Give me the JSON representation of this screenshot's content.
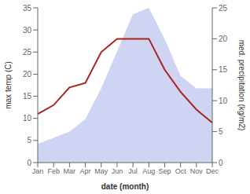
{
  "chart_data": {
    "type": "line",
    "categories": [
      "Jan",
      "Feb",
      "Mar",
      "Apr",
      "May",
      "Jun",
      "Jul",
      "Aug",
      "Sep",
      "Oct",
      "Nov",
      "Dec"
    ],
    "xlabel": "date (month)",
    "ylabel": "max temp (C)",
    "y2label": "med. precipitation (kg/m2)",
    "ylim": [
      0,
      35
    ],
    "yticks": [
      0,
      5,
      10,
      15,
      20,
      25,
      30,
      35
    ],
    "y2lim": [
      0,
      25
    ],
    "y2ticks": [
      0,
      5,
      10,
      15,
      20,
      25
    ],
    "series": [
      {
        "type": "area",
        "axis": "y2",
        "color": "#c5ccee",
        "values": [
          3,
          4,
          5,
          7,
          12,
          18,
          24,
          25,
          20,
          14,
          12,
          12
        ]
      },
      {
        "type": "line",
        "color": "#aa2222",
        "values": [
          11,
          13,
          17,
          18,
          25,
          28,
          28,
          28,
          21,
          16,
          12,
          9
        ]
      }
    ]
  }
}
